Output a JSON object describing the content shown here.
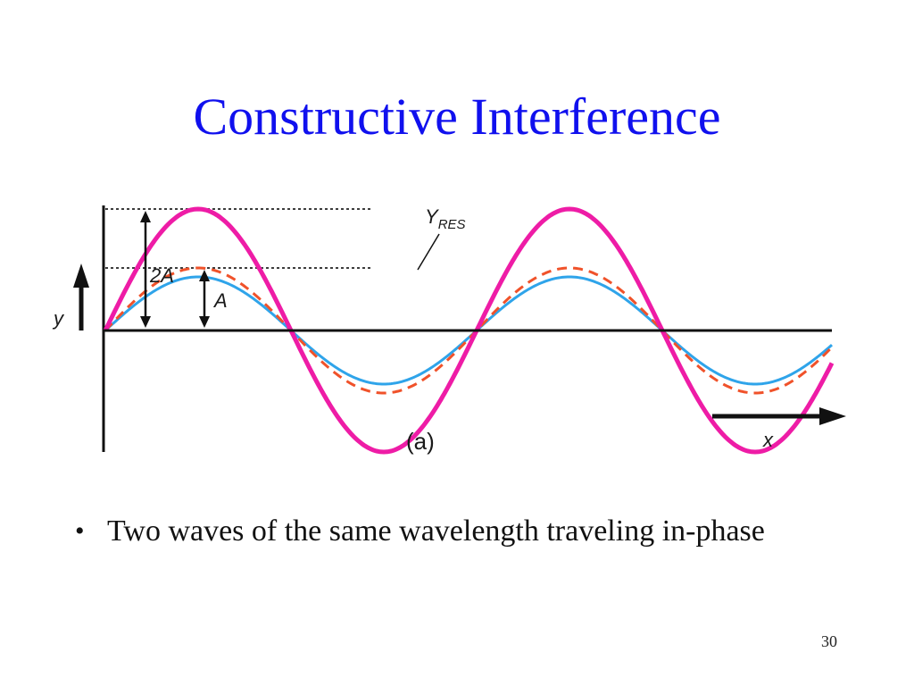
{
  "title": "Constructive Interference",
  "figure": {
    "labels": {
      "y_axis": "y",
      "x_axis": "x",
      "two_a": "2A",
      "a": "A",
      "y_res_main": "Y",
      "y_res_sub": "RES",
      "panel": "(a)"
    },
    "colors": {
      "resultant": "#ee1ca6",
      "wave_dashed": "#f0522a",
      "wave_solid": "#2fa4ea",
      "axis": "#111111"
    }
  },
  "bullets": [
    "Two waves of the same wavelength traveling in-phase"
  ],
  "page_number": "30"
}
